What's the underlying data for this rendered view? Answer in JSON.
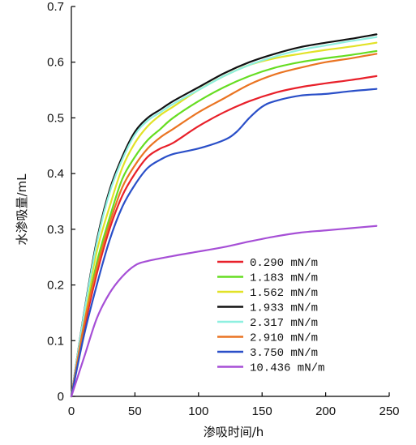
{
  "chart_data": {
    "type": "line",
    "xlabel": "渗吸时间/h",
    "ylabel": "水渗吸量/mL",
    "xlim": [
      0,
      250
    ],
    "ylim": [
      0,
      0.7
    ],
    "x_ticks": [
      "0",
      "50",
      "100",
      "150",
      "200",
      "250"
    ],
    "y_ticks": [
      "0",
      "0.1",
      "0.2",
      "0.3",
      "0.4",
      "0.5",
      "0.6",
      "0.7"
    ],
    "grid": false,
    "legend_position": "bottom-right",
    "series": [
      {
        "name": "0.290 mN/m",
        "color": "#e8202a",
        "points": [
          [
            0,
            0
          ],
          [
            10,
            0.12
          ],
          [
            20,
            0.22
          ],
          [
            30,
            0.3
          ],
          [
            40,
            0.36
          ],
          [
            50,
            0.4
          ],
          [
            60,
            0.43
          ],
          [
            70,
            0.445
          ],
          [
            80,
            0.455
          ],
          [
            100,
            0.485
          ],
          [
            120,
            0.51
          ],
          [
            140,
            0.53
          ],
          [
            160,
            0.545
          ],
          [
            180,
            0.555
          ],
          [
            200,
            0.562
          ],
          [
            220,
            0.568
          ],
          [
            240,
            0.575
          ]
        ]
      },
      {
        "name": "1.183 mN/m",
        "color": "#66dd22",
        "points": [
          [
            0,
            0
          ],
          [
            10,
            0.13
          ],
          [
            20,
            0.24
          ],
          [
            30,
            0.32
          ],
          [
            40,
            0.39
          ],
          [
            50,
            0.43
          ],
          [
            60,
            0.46
          ],
          [
            70,
            0.48
          ],
          [
            80,
            0.5
          ],
          [
            100,
            0.53
          ],
          [
            120,
            0.555
          ],
          [
            140,
            0.575
          ],
          [
            160,
            0.59
          ],
          [
            180,
            0.6
          ],
          [
            200,
            0.607
          ],
          [
            220,
            0.613
          ],
          [
            240,
            0.62
          ]
        ]
      },
      {
        "name": "1.562 mN/m",
        "color": "#e2e227",
        "points": [
          [
            0,
            0
          ],
          [
            10,
            0.14
          ],
          [
            20,
            0.26
          ],
          [
            30,
            0.34
          ],
          [
            40,
            0.41
          ],
          [
            50,
            0.455
          ],
          [
            60,
            0.485
          ],
          [
            70,
            0.505
          ],
          [
            80,
            0.52
          ],
          [
            100,
            0.55
          ],
          [
            120,
            0.575
          ],
          [
            140,
            0.595
          ],
          [
            160,
            0.607
          ],
          [
            180,
            0.615
          ],
          [
            200,
            0.622
          ],
          [
            220,
            0.628
          ],
          [
            240,
            0.635
          ]
        ]
      },
      {
        "name": "1.933 mN/m",
        "color": "#111111",
        "points": [
          [
            0,
            0
          ],
          [
            10,
            0.15
          ],
          [
            20,
            0.28
          ],
          [
            30,
            0.37
          ],
          [
            40,
            0.43
          ],
          [
            50,
            0.475
          ],
          [
            60,
            0.5
          ],
          [
            70,
            0.515
          ],
          [
            80,
            0.53
          ],
          [
            100,
            0.555
          ],
          [
            120,
            0.58
          ],
          [
            140,
            0.6
          ],
          [
            160,
            0.615
          ],
          [
            180,
            0.627
          ],
          [
            200,
            0.635
          ],
          [
            220,
            0.642
          ],
          [
            240,
            0.65
          ]
        ]
      },
      {
        "name": "2.317 mN/m",
        "color": "#8ef0e0",
        "points": [
          [
            0,
            0
          ],
          [
            10,
            0.148
          ],
          [
            20,
            0.275
          ],
          [
            30,
            0.365
          ],
          [
            40,
            0.425
          ],
          [
            50,
            0.47
          ],
          [
            60,
            0.495
          ],
          [
            70,
            0.51
          ],
          [
            80,
            0.525
          ],
          [
            100,
            0.55
          ],
          [
            120,
            0.575
          ],
          [
            140,
            0.595
          ],
          [
            160,
            0.61
          ],
          [
            180,
            0.622
          ],
          [
            200,
            0.63
          ],
          [
            220,
            0.638
          ],
          [
            240,
            0.645
          ]
        ]
      },
      {
        "name": "2.910 mN/m",
        "color": "#ea7422",
        "points": [
          [
            0,
            0
          ],
          [
            10,
            0.13
          ],
          [
            20,
            0.23
          ],
          [
            30,
            0.31
          ],
          [
            40,
            0.375
          ],
          [
            50,
            0.415
          ],
          [
            60,
            0.445
          ],
          [
            70,
            0.465
          ],
          [
            80,
            0.48
          ],
          [
            100,
            0.51
          ],
          [
            120,
            0.535
          ],
          [
            140,
            0.56
          ],
          [
            160,
            0.578
          ],
          [
            180,
            0.59
          ],
          [
            200,
            0.6
          ],
          [
            220,
            0.607
          ],
          [
            240,
            0.615
          ]
        ]
      },
      {
        "name": "3.750 mN/m",
        "color": "#2a4fc8",
        "points": [
          [
            0,
            0
          ],
          [
            10,
            0.11
          ],
          [
            20,
            0.2
          ],
          [
            30,
            0.28
          ],
          [
            40,
            0.34
          ],
          [
            50,
            0.38
          ],
          [
            60,
            0.41
          ],
          [
            70,
            0.425
          ],
          [
            80,
            0.435
          ],
          [
            100,
            0.445
          ],
          [
            120,
            0.46
          ],
          [
            130,
            0.475
          ],
          [
            140,
            0.5
          ],
          [
            150,
            0.52
          ],
          [
            160,
            0.53
          ],
          [
            180,
            0.54
          ],
          [
            200,
            0.543
          ],
          [
            220,
            0.548
          ],
          [
            240,
            0.552
          ]
        ]
      },
      {
        "name": "10.436 mN/m",
        "color": "#a64fd6",
        "points": [
          [
            0,
            0
          ],
          [
            10,
            0.07
          ],
          [
            20,
            0.14
          ],
          [
            30,
            0.185
          ],
          [
            40,
            0.215
          ],
          [
            50,
            0.235
          ],
          [
            60,
            0.243
          ],
          [
            80,
            0.252
          ],
          [
            100,
            0.26
          ],
          [
            120,
            0.268
          ],
          [
            140,
            0.278
          ],
          [
            160,
            0.287
          ],
          [
            180,
            0.294
          ],
          [
            200,
            0.298
          ],
          [
            220,
            0.302
          ],
          [
            240,
            0.306
          ]
        ]
      }
    ]
  }
}
